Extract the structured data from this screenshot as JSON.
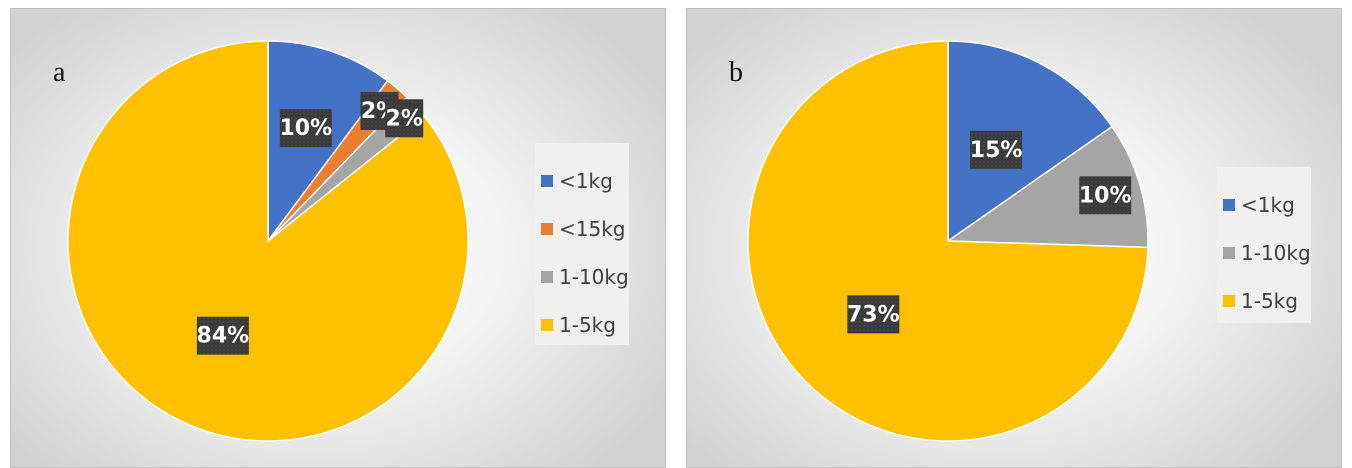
{
  "chart_data": [
    {
      "type": "pie",
      "panel_label": "a",
      "legend_position": "right",
      "slices": [
        {
          "label": "<1kg",
          "value": 10,
          "data_label": "10%",
          "color": "#4472C4"
        },
        {
          "label": "<15kg",
          "value": 2,
          "data_label": "2%",
          "color": "#ED7D31"
        },
        {
          "label": "1-10kg",
          "value": 2,
          "data_label": "2%",
          "color": "#A5A5A5"
        },
        {
          "label": "1-5kg",
          "value": 84,
          "data_label": "84%",
          "color": "#FFC000"
        }
      ]
    },
    {
      "type": "pie",
      "panel_label": "b",
      "legend_position": "right",
      "slices": [
        {
          "label": "<1kg",
          "value": 15,
          "data_label": "15%",
          "color": "#4472C4"
        },
        {
          "label": "1-10kg",
          "value": 10,
          "data_label": "10%",
          "color": "#A5A5A5"
        },
        {
          "label": "1-5kg",
          "value": 73,
          "data_label": "73%",
          "color": "#FFC000"
        }
      ]
    }
  ]
}
